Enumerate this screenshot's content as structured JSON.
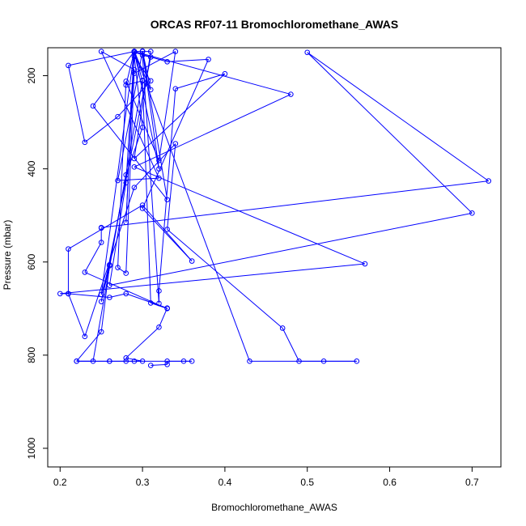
{
  "chart_data": {
    "type": "line",
    "title": "ORCAS RF07-11 Bromochloromethane_AWAS",
    "xlabel": "Bromochloromethane_AWAS",
    "ylabel": "Pressure (mbar)",
    "xlim": [
      0.185,
      0.735
    ],
    "ylim": [
      1040,
      140
    ],
    "y_inverted": true,
    "x_ticks": [
      0.2,
      0.3,
      0.4,
      0.5,
      0.6,
      0.7
    ],
    "x_tick_labels": [
      "0.2",
      "0.3",
      "0.4",
      "0.5",
      "0.6",
      "0.7"
    ],
    "y_ticks": [
      200,
      400,
      600,
      800,
      1000
    ],
    "y_tick_labels": [
      "200",
      "400",
      "600",
      "800",
      "1000"
    ],
    "grid": false,
    "legend": "none",
    "series_color": "#0000ff",
    "series": [
      {
        "points": [
          [
            0.31,
            822
          ],
          [
            0.33,
            820
          ],
          [
            0.33,
            813
          ],
          [
            0.35,
            813
          ],
          [
            0.36,
            813
          ],
          [
            0.26,
            813
          ],
          [
            0.22,
            813
          ],
          [
            0.26,
            813
          ],
          [
            0.28,
            813
          ],
          [
            0.29,
            813
          ],
          [
            0.3,
            813
          ],
          [
            0.28,
            806
          ],
          [
            0.32,
            740
          ],
          [
            0.33,
            699
          ],
          [
            0.28,
            668
          ],
          [
            0.26,
            676
          ],
          [
            0.21,
            668
          ],
          [
            0.2,
            668
          ],
          [
            0.57,
            604
          ],
          [
            0.29,
            396
          ],
          [
            0.48,
            240
          ],
          [
            0.29,
            148
          ],
          [
            0.25,
            670
          ],
          [
            0.26,
            606
          ],
          [
            0.28,
            413
          ],
          [
            0.3,
            311
          ],
          [
            0.29,
            159
          ],
          [
            0.31,
            211
          ],
          [
            0.27,
            288
          ],
          [
            0.23,
            343
          ],
          [
            0.21,
            178
          ],
          [
            0.29,
            148
          ],
          [
            0.28,
            220
          ],
          [
            0.3,
            211
          ],
          [
            0.29,
            148
          ],
          [
            0.31,
            230
          ],
          [
            0.3,
            147
          ],
          [
            0.33,
            466
          ],
          [
            0.24,
            265
          ],
          [
            0.29,
            148
          ],
          [
            0.28,
            515
          ],
          [
            0.29,
            150
          ],
          [
            0.33,
            170
          ],
          [
            0.38,
            165
          ],
          [
            0.3,
            485
          ],
          [
            0.36,
            598
          ],
          [
            0.3,
            478
          ],
          [
            0.21,
            572
          ],
          [
            0.21,
            668
          ],
          [
            0.23,
            760
          ],
          [
            0.29,
            440
          ],
          [
            0.34,
            346
          ],
          [
            0.33,
            530
          ],
          [
            0.47,
            742
          ],
          [
            0.49,
            813
          ],
          [
            0.52,
            813
          ],
          [
            0.56,
            813
          ],
          [
            0.43,
            813
          ],
          [
            0.29,
            148
          ],
          [
            0.31,
            148
          ],
          [
            0.29,
            378
          ],
          [
            0.4,
            196
          ],
          [
            0.34,
            228
          ],
          [
            0.32,
            662
          ],
          [
            0.32,
            689
          ],
          [
            0.3,
            156
          ],
          [
            0.31,
            160
          ],
          [
            0.25,
            685
          ],
          [
            0.26,
            608
          ],
          [
            0.25,
            750
          ],
          [
            0.22,
            813
          ],
          [
            0.24,
            813
          ],
          [
            0.3,
            210
          ],
          [
            0.31,
            688
          ],
          [
            0.33,
            700
          ],
          [
            0.23,
            622
          ],
          [
            0.25,
            558
          ],
          [
            0.25,
            527
          ],
          [
            0.25,
            526
          ],
          [
            0.72,
            426
          ],
          [
            0.5,
            150
          ],
          [
            0.7,
            495
          ],
          [
            0.26,
            650
          ],
          [
            0.28,
            430
          ],
          [
            0.29,
            148
          ],
          [
            0.32,
            400
          ],
          [
            0.3,
            148
          ],
          [
            0.27,
            425
          ],
          [
            0.32,
            420
          ],
          [
            0.25,
            148
          ],
          [
            0.29,
            187
          ],
          [
            0.28,
            624
          ],
          [
            0.27,
            612
          ],
          [
            0.28,
            212
          ],
          [
            0.32,
            382
          ],
          [
            0.34,
            148
          ],
          [
            0.29,
            195
          ]
        ]
      }
    ]
  }
}
